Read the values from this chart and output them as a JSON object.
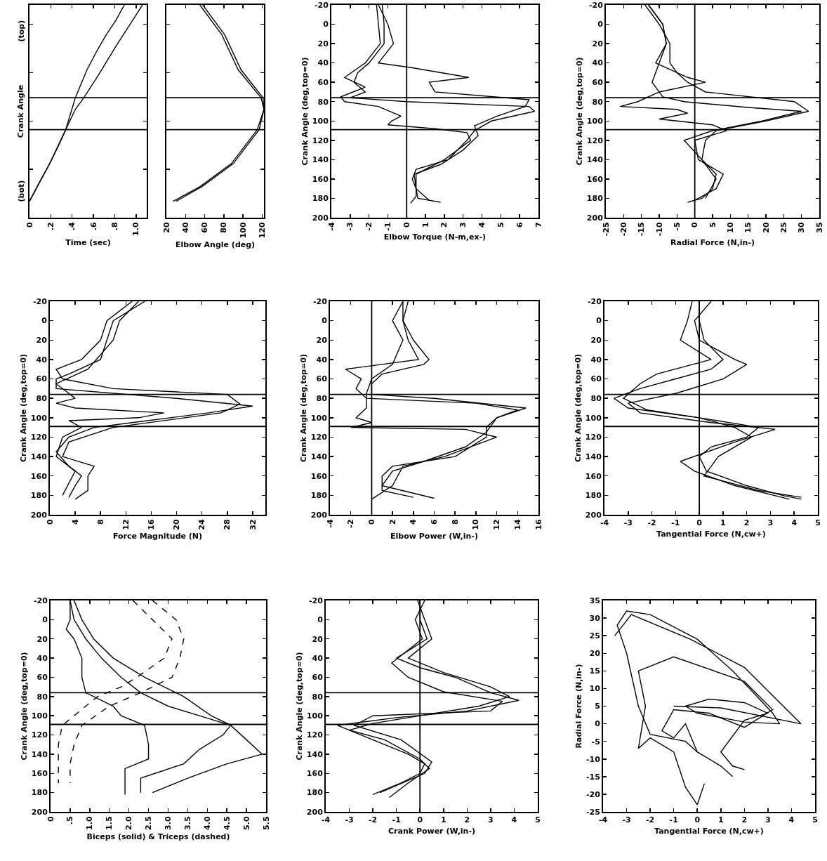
{
  "chart_data": [
    {
      "type": "line",
      "xlabel": "Time (sec)",
      "ylabel": "Crank Angle",
      "xlim": [
        0,
        1.1
      ],
      "xticks": [
        0,
        {
          "value": 0.2,
          "label": ".2"
        },
        {
          "value": 0.4,
          "label": ".4"
        },
        {
          "value": 0.6,
          "label": ".6"
        },
        {
          "value": 0.8,
          "label": ".8"
        },
        {
          "value": 1.0,
          "label": "1.0"
        }
      ],
      "ylim": [
        200,
        -20
      ],
      "tick_labels": "x",
      "annotations": [
        "(top)",
        "(bot)"
      ],
      "series": [
        {
          "color": "#000000",
          "x": [
            0,
            0.1,
            0.19,
            0.27,
            0.34,
            0.43,
            0.54,
            0.63,
            0.72,
            0.81,
            0.89
          ],
          "values": [
            183,
            162,
            144,
            126,
            109,
            76,
            47,
            28,
            11,
            -4,
            -20
          ]
        },
        {
          "color": "#000000",
          "x": [
            0,
            0.19,
            0.34,
            0.43,
            0.51,
            0.65,
            0.81,
            0.95,
            1.06
          ],
          "values": [
            183,
            144,
            109,
            88,
            76,
            52,
            23,
            -1,
            -20
          ]
        }
      ],
      "ref_lines": [
        {
          "axis": "y",
          "value": 76
        },
        {
          "axis": "y",
          "value": 109
        }
      ]
    },
    {
      "type": "line",
      "xlabel": "Elbow Angle (deg)",
      "xlim": [
        20,
        122
      ],
      "xticks": [
        20,
        40,
        60,
        80,
        100,
        120
      ],
      "ylim": [
        200,
        -20
      ],
      "tick_labels": "x",
      "series": [
        {
          "color": "#000000",
          "x": [
            55,
            78,
            95,
            119,
            122,
            115,
            88,
            55,
            27
          ],
          "values": [
            -20,
            11,
            47,
            76,
            88,
            109,
            144,
            168,
            183
          ]
        },
        {
          "color": "#000000",
          "x": [
            58,
            81,
            98,
            121,
            122,
            117,
            90,
            57,
            30
          ],
          "values": [
            -20,
            11,
            47,
            76,
            88,
            109,
            144,
            168,
            183
          ]
        }
      ],
      "ref_lines": [
        {
          "axis": "y",
          "value": 76
        },
        {
          "axis": "y",
          "value": 109
        }
      ]
    },
    {
      "type": "line",
      "xlabel": "Elbow Torque (N-m,ex-)",
      "ylabel": "Crank Angle (deg,top=0)",
      "xlim": [
        -4,
        7
      ],
      "xticks": [
        -4,
        -3,
        -2,
        -1,
        0,
        1,
        2,
        3,
        4,
        5,
        6,
        7
      ],
      "ylim": [
        200,
        -20
      ],
      "yticks": [
        -20,
        0,
        20,
        40,
        60,
        80,
        100,
        120,
        140,
        160,
        180,
        200
      ],
      "series": [
        {
          "color": "#000000",
          "x": [
            -1.3,
            -1.2,
            -1.2,
            -2,
            -2.6,
            -2.8,
            -2.2,
            -3,
            0,
            6.5,
            6.8,
            4.5,
            3.6,
            3.2,
            2.2,
            0.5,
            0.3,
            0.5,
            0.6,
            1.8
          ],
          "values": [
            -20,
            0,
            20,
            40,
            50,
            60,
            70,
            76,
            80,
            85,
            90,
            100,
            110,
            120,
            140,
            150,
            160,
            170,
            180,
            184
          ]
        },
        {
          "color": "#000000",
          "x": [
            -1.5,
            -1.0,
            -0.7,
            -1.5,
            0.3,
            3.3,
            1.2,
            1.5,
            6.5,
            6.3,
            4.8,
            3.6,
            3.8,
            3.0,
            1.8,
            0.4,
            0.5,
            1.2
          ],
          "values": [
            -20,
            0,
            20,
            40,
            45,
            55,
            60,
            70,
            78,
            85,
            95,
            105,
            115,
            130,
            145,
            155,
            170,
            182
          ]
        },
        {
          "color": "#000000",
          "x": [
            -1.6,
            -1.5,
            -1.4,
            -2.2,
            -3.3,
            -2.2,
            -3.5,
            -3.3,
            -1.5,
            -0.3,
            -0.8,
            -1.0,
            1.5,
            3.2,
            3.4,
            2.0,
            0.5,
            0.5,
            0.2
          ],
          "values": [
            -20,
            0,
            20,
            40,
            55,
            65,
            75,
            80,
            85,
            95,
            100,
            104,
            108,
            112,
            120,
            140,
            155,
            178,
            185
          ]
        }
      ],
      "ref_lines": [
        {
          "axis": "y",
          "value": 76
        },
        {
          "axis": "y",
          "value": 109
        },
        {
          "axis": "x",
          "value": 0
        }
      ]
    },
    {
      "type": "line",
      "xlabel": "Radial Force (N,in-)",
      "ylabel": "Crank Angle (deg,top=0)",
      "xlim": [
        -25,
        35
      ],
      "xticks": [
        -25,
        -20,
        -15,
        -10,
        -5,
        0,
        5,
        10,
        15,
        20,
        25,
        30,
        35
      ],
      "ylim": [
        200,
        -20
      ],
      "yticks": [
        -20,
        0,
        20,
        40,
        60,
        80,
        100,
        120,
        140,
        160,
        180,
        200
      ],
      "series": [
        {
          "color": "#000000",
          "x": [
            -14,
            -10,
            -7,
            -7,
            -5,
            -2,
            3,
            28,
            32,
            20,
            6,
            3,
            2,
            6,
            5,
            2,
            -2
          ],
          "values": [
            -20,
            0,
            20,
            40,
            50,
            60,
            70,
            80,
            90,
            100,
            110,
            120,
            140,
            155,
            170,
            180,
            184
          ]
        },
        {
          "color": "#000000",
          "x": [
            -13,
            -9,
            -8,
            -11,
            -2,
            3,
            -10,
            -16,
            -21,
            -5,
            -2,
            -10,
            5,
            9,
            0,
            1,
            8,
            6,
            0
          ],
          "values": [
            -20,
            0,
            20,
            40,
            55,
            60,
            70,
            80,
            85,
            88,
            92,
            98,
            104,
            110,
            120,
            140,
            155,
            170,
            182
          ]
        },
        {
          "color": "#000000",
          "x": [
            -13,
            -9,
            -8,
            -10,
            -12,
            -9,
            -3,
            15,
            30,
            19,
            5,
            -3,
            2,
            6,
            3
          ],
          "values": [
            -20,
            0,
            20,
            40,
            60,
            75,
            80,
            86,
            90,
            100,
            110,
            120,
            140,
            160,
            180
          ]
        }
      ],
      "ref_lines": [
        {
          "axis": "y",
          "value": 76
        },
        {
          "axis": "y",
          "value": 109
        },
        {
          "axis": "x",
          "value": 0
        }
      ]
    },
    {
      "type": "line",
      "xlabel": "Force Magnitude (N)",
      "ylabel": "Crank Angle (deg,top=0)",
      "xlim": [
        0,
        34
      ],
      "xticks": [
        0,
        4,
        8,
        12,
        16,
        20,
        24,
        28,
        32
      ],
      "ylim": [
        200,
        -20
      ],
      "yticks": [
        -20,
        0,
        20,
        40,
        60,
        80,
        100,
        120,
        140,
        160,
        180,
        200
      ],
      "series": [
        {
          "color": "#000000",
          "x": [
            15,
            10,
            9,
            8,
            3,
            1,
            1,
            20,
            32,
            25,
            13,
            7,
            3,
            1,
            3,
            5,
            4,
            3
          ],
          "values": [
            -20,
            0,
            20,
            40,
            55,
            60,
            70,
            80,
            88,
            95,
            105,
            110,
            120,
            135,
            150,
            160,
            170,
            182
          ]
        },
        {
          "color": "#000000",
          "x": [
            13,
            9,
            8,
            5,
            1,
            2,
            10,
            28,
            30,
            27,
            10,
            3,
            2,
            7,
            6,
            6,
            4
          ],
          "values": [
            -20,
            0,
            20,
            40,
            50,
            60,
            70,
            76,
            86,
            95,
            110,
            125,
            140,
            150,
            160,
            175,
            184
          ]
        },
        {
          "color": "#000000",
          "x": [
            14,
            11,
            10,
            6,
            1,
            4,
            1,
            4,
            18,
            14,
            3,
            5,
            2,
            1,
            4,
            2
          ],
          "values": [
            -20,
            0,
            20,
            50,
            65,
            80,
            85,
            90,
            95,
            100,
            103,
            110,
            120,
            140,
            155,
            180
          ]
        }
      ],
      "ref_lines": [
        {
          "axis": "y",
          "value": 76
        },
        {
          "axis": "y",
          "value": 109
        }
      ]
    },
    {
      "type": "line",
      "xlabel": "Elbow Power (W,in-)",
      "ylabel": "Crank Angle (deg,top=0)",
      "xlim": [
        -4,
        16
      ],
      "xticks": [
        -4,
        -2,
        0,
        2,
        4,
        6,
        8,
        10,
        12,
        14,
        16
      ],
      "ylim": [
        200,
        -20
      ],
      "yticks": [
        -20,
        0,
        20,
        40,
        60,
        80,
        100,
        120,
        140,
        160,
        180,
        200
      ],
      "series": [
        {
          "color": "#000000",
          "x": [
            3,
            3,
            4,
            5.5,
            5,
            1,
            0,
            0,
            6,
            14.8,
            12,
            11,
            11,
            8,
            2,
            1,
            1,
            4
          ],
          "values": [
            -20,
            0,
            20,
            40,
            45,
            55,
            65,
            76,
            80,
            90,
            100,
            110,
            120,
            140,
            150,
            160,
            175,
            182
          ]
        },
        {
          "color": "#000000",
          "x": [
            3.5,
            3,
            3.5,
            4.5,
            -2.5,
            -1,
            -1.5,
            -0.5,
            10,
            14,
            12,
            11,
            9,
            5,
            2,
            1,
            6
          ],
          "values": [
            -20,
            0,
            20,
            40,
            50,
            60,
            70,
            80,
            85,
            92,
            100,
            115,
            130,
            145,
            155,
            170,
            183
          ]
        },
        {
          "color": "#000000",
          "x": [
            3,
            2,
            3,
            2,
            0,
            -0.5,
            -0.5,
            -1.5,
            0,
            -2,
            9,
            12,
            7,
            3,
            2,
            0
          ],
          "values": [
            -20,
            0,
            20,
            45,
            60,
            75,
            90,
            100,
            105,
            110,
            112,
            120,
            140,
            150,
            170,
            184
          ]
        }
      ],
      "ref_lines": [
        {
          "axis": "y",
          "value": 76
        },
        {
          "axis": "y",
          "value": 109
        },
        {
          "axis": "x",
          "value": 0
        }
      ]
    },
    {
      "type": "line",
      "xlabel": "Tangential Force (N,cw+)",
      "ylabel": "Crank Angle (deg,top=0)",
      "xlim": [
        -4,
        5
      ],
      "xticks": [
        -4,
        -3,
        -2,
        -1,
        0,
        1,
        2,
        3,
        4,
        5
      ],
      "ylim": [
        200,
        -20
      ],
      "yticks": [
        -20,
        0,
        20,
        40,
        60,
        80,
        100,
        120,
        140,
        160,
        180,
        200
      ],
      "series": [
        {
          "color": "#000000",
          "x": [
            0,
            0,
            0.2,
            1,
            0.5,
            -1,
            -2.5,
            -3.6,
            -3,
            0,
            2.5,
            2,
            0.5,
            0,
            0.3,
            2,
            3.5,
            4.3
          ],
          "values": [
            -20,
            0,
            20,
            40,
            50,
            60,
            70,
            80,
            90,
            100,
            110,
            120,
            130,
            140,
            155,
            170,
            180,
            184
          ]
        },
        {
          "color": "#000000",
          "x": [
            0.5,
            -0.2,
            0,
            1.5,
            2,
            1,
            -1,
            -3,
            -2.5,
            0.5,
            3.2,
            1.5,
            -0.8,
            -0.2,
            1.5,
            3.8
          ],
          "values": [
            -20,
            0,
            20,
            40,
            45,
            60,
            75,
            85,
            95,
            105,
            112,
            125,
            145,
            155,
            170,
            184
          ]
        },
        {
          "color": "#000000",
          "x": [
            -0.3,
            -0.5,
            -0.8,
            0.5,
            -1.8,
            -2.5,
            -3.2,
            -2.2,
            0,
            1.5,
            2.2,
            0.8,
            0.2,
            2.5,
            4.3
          ],
          "values": [
            -20,
            0,
            20,
            40,
            55,
            65,
            80,
            92,
            100,
            110,
            120,
            140,
            160,
            175,
            182
          ]
        }
      ],
      "ref_lines": [
        {
          "axis": "y",
          "value": 76
        },
        {
          "axis": "y",
          "value": 109
        },
        {
          "axis": "x",
          "value": 0
        }
      ]
    },
    {
      "type": "line",
      "xlabel": "Biceps (solid) & Triceps (dashed)",
      "ylabel": "Crank Angle (deg,top=0)",
      "xlim": [
        0,
        5.5
      ],
      "xticks": [
        0,
        {
          "value": 0.5,
          "label": ".5"
        },
        {
          "value": 1.0,
          "label": "1.0"
        },
        {
          "value": 1.5,
          "label": "1.5"
        },
        {
          "value": 2.0,
          "label": "2.0"
        },
        {
          "value": 2.5,
          "label": "2.5"
        },
        {
          "value": 3.0,
          "label": "3.0"
        },
        {
          "value": 3.5,
          "label": "3.5"
        },
        {
          "value": 4.0,
          "label": "4.0"
        },
        {
          "value": 4.5,
          "label": "4.5"
        },
        {
          "value": 5.0,
          "label": "5.0"
        },
        {
          "value": 5.5,
          "label": "5.5"
        }
      ],
      "ylim": [
        200,
        -20
      ],
      "yticks": [
        -20,
        0,
        20,
        40,
        60,
        80,
        100,
        120,
        140,
        160,
        180,
        200
      ],
      "series": [
        {
          "color": "#000000",
          "line_style": "solid",
          "x": [
            0.5,
            0.6,
            0.9,
            1.3,
            1.8,
            2.3,
            3.0,
            3.8,
            4.6,
            5.0,
            5.4,
            4.5,
            3.5,
            2.6
          ],
          "values": [
            -20,
            0,
            20,
            40,
            60,
            76,
            90,
            100,
            110,
            125,
            140,
            150,
            165,
            180
          ]
        },
        {
          "color": "#000000",
          "line_style": "solid",
          "x": [
            0.5,
            0.5,
            0.4,
            0.6,
            0.8,
            0.8,
            0.9,
            1.6,
            1.8,
            2.4,
            2.5,
            2.5,
            1.9,
            1.9,
            1.9
          ],
          "values": [
            -20,
            0,
            10,
            20,
            40,
            60,
            76,
            90,
            100,
            110,
            130,
            145,
            155,
            170,
            182
          ]
        },
        {
          "color": "#000000",
          "line_style": "solid",
          "x": [
            0.6,
            0.8,
            1.1,
            1.6,
            2.4,
            3.4,
            4.1,
            4.6,
            4.4,
            3.8,
            3.4,
            2.3,
            2.3
          ],
          "values": [
            -20,
            0,
            20,
            40,
            60,
            80,
            100,
            110,
            120,
            135,
            150,
            165,
            180
          ]
        },
        {
          "color": "#000000",
          "line_style": "dashed",
          "x": [
            2.1,
            2.6,
            3.1,
            2.9,
            2.2,
            1.8,
            1.2,
            0.9,
            0.6,
            0.3,
            0.2,
            0.2,
            0.2
          ],
          "values": [
            -20,
            0,
            20,
            40,
            60,
            70,
            80,
            90,
            100,
            110,
            130,
            150,
            170
          ]
        },
        {
          "color": "#000000",
          "line_style": "dashed",
          "x": [
            2.6,
            3.2,
            3.4,
            3.3,
            3.1,
            2.3,
            1.5,
            0.8,
            0.6,
            0.5,
            0.5
          ],
          "values": [
            -20,
            0,
            20,
            40,
            60,
            76,
            90,
            110,
            130,
            150,
            170
          ]
        }
      ],
      "ref_lines": [
        {
          "axis": "y",
          "value": 76
        },
        {
          "axis": "y",
          "value": 109
        }
      ]
    },
    {
      "type": "line",
      "xlabel": "Crank Power (W,in-)",
      "ylabel": "Crank Angle (deg,top=0)",
      "xlim": [
        -4,
        5
      ],
      "xticks": [
        -4,
        -3,
        -2,
        -1,
        0,
        1,
        2,
        3,
        4,
        5
      ],
      "ylim": [
        200,
        -20
      ],
      "yticks": [
        -20,
        0,
        20,
        40,
        60,
        80,
        100,
        120,
        140,
        160,
        180,
        200
      ],
      "series": [
        {
          "color": "#000000",
          "x": [
            0,
            0,
            0.3,
            -1,
            0,
            1.5,
            3,
            4.2,
            2,
            -1,
            -3.5,
            -2.5,
            -0.5,
            0.2,
            0,
            -0.8,
            -2
          ],
          "values": [
            -20,
            0,
            20,
            40,
            50,
            60,
            76,
            84,
            95,
            102,
            110,
            120,
            140,
            150,
            160,
            170,
            182
          ]
        },
        {
          "color": "#000000",
          "x": [
            -0.1,
            0.2,
            0.5,
            -0.5,
            1,
            3,
            3.8,
            2.5,
            0,
            -2,
            -3,
            -1.5,
            0,
            0.4,
            -0.5,
            -1.3
          ],
          "values": [
            -20,
            0,
            20,
            40,
            55,
            70,
            80,
            90,
            100,
            108,
            115,
            125,
            145,
            155,
            170,
            185
          ]
        },
        {
          "color": "#000000",
          "x": [
            0.2,
            -0.2,
            0.1,
            -1.2,
            -0.5,
            1,
            3.5,
            3,
            -2,
            -2.8,
            -0.8,
            0.5,
            0.2,
            -1.7
          ],
          "values": [
            -20,
            0,
            20,
            45,
            60,
            75,
            85,
            95,
            100,
            110,
            125,
            148,
            160,
            180
          ]
        }
      ],
      "ref_lines": [
        {
          "axis": "y",
          "value": 76
        },
        {
          "axis": "y",
          "value": 109
        },
        {
          "axis": "x",
          "value": 0
        }
      ]
    },
    {
      "type": "line",
      "xlabel": "Tangential Force (N,cw+)",
      "ylabel": "Radial Force (N,in-)",
      "xlim": [
        -4,
        5
      ],
      "xticks": [
        -4,
        -3,
        -2,
        -1,
        0,
        1,
        2,
        3,
        4,
        5
      ],
      "ylim": [
        -25,
        35
      ],
      "yticks": [
        -25,
        -20,
        -15,
        -10,
        -5,
        0,
        5,
        10,
        15,
        20,
        25,
        30,
        35
      ],
      "series": [
        {
          "color": "#000000",
          "x": [
            0,
            -0.5,
            -2,
            -2.5,
            -3,
            -3.4,
            -3,
            -2,
            0,
            1.5,
            2.5,
            3.2,
            3.5,
            2,
            0,
            -0.5,
            0.5,
            2,
            3,
            2,
            1,
            1.5,
            2
          ],
          "values": [
            -8,
            -5,
            -3,
            5,
            20,
            28,
            32,
            31,
            24,
            15,
            8,
            3,
            0,
            0.5,
            3,
            5,
            7,
            6,
            3,
            1,
            -8,
            -12,
            -13
          ]
        },
        {
          "color": "#000000",
          "x": [
            0.3,
            0,
            -0.5,
            -1,
            -2,
            -2.5,
            -2.2,
            -2.5,
            -1,
            2,
            3.2,
            2,
            0.5,
            -1,
            -1.5,
            -1,
            -0.5,
            0,
            1,
            1.5
          ],
          "values": [
            -17,
            -23,
            -18,
            -8,
            -4,
            -7,
            5,
            15,
            19,
            12,
            4,
            -1,
            3,
            4,
            -2,
            -4,
            0,
            -8,
            -12,
            -15
          ]
        },
        {
          "color": "#000000",
          "x": [
            -3.5,
            -2.8,
            -0.3,
            2,
            3.5,
            4.4,
            1,
            -1
          ],
          "values": [
            25,
            31,
            24,
            16,
            6,
            0,
            4.5,
            5
          ]
        }
      ]
    }
  ]
}
